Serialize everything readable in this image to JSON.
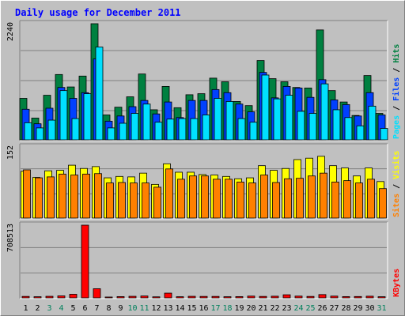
{
  "chart_title": "Daily usage for December 2011",
  "colors": {
    "title": "#0000ff",
    "hits": "#008040",
    "files": "#0040ff",
    "pages": "#00e0ff",
    "visits": "#ffff00",
    "sites": "#ff8000",
    "kbytes": "#ff0000",
    "weekend_day": "#00805c",
    "weekday": "#000000",
    "panel": "#c0c0c0"
  },
  "chart_data": [
    {
      "type": "bar",
      "panel": "hits-files-pages",
      "categories": [
        "1",
        "2",
        "3",
        "4",
        "5",
        "6",
        "7",
        "8",
        "9",
        "10",
        "11",
        "12",
        "13",
        "14",
        "15",
        "16",
        "17",
        "18",
        "19",
        "20",
        "21",
        "22",
        "23",
        "24",
        "25",
        "26",
        "27",
        "28",
        "29",
        "30",
        "31"
      ],
      "ymax_label": "2240",
      "ylim": [
        0,
        2240
      ],
      "series": [
        {
          "name": "Hits",
          "values": [
            800,
            420,
            860,
            1260,
            1020,
            1230,
            2240,
            480,
            630,
            830,
            1270,
            580,
            1030,
            620,
            870,
            890,
            1190,
            1120,
            740,
            660,
            1530,
            1180,
            1120,
            1010,
            1000,
            2120,
            950,
            730,
            470,
            1240,
            510
          ]
        },
        {
          "name": "Files",
          "values": [
            590,
            310,
            610,
            1010,
            800,
            910,
            1560,
            360,
            460,
            640,
            760,
            500,
            730,
            430,
            760,
            760,
            970,
            910,
            690,
            540,
            1300,
            810,
            1030,
            1000,
            820,
            1160,
            770,
            680,
            460,
            910,
            480
          ]
        },
        {
          "name": "Pages",
          "values": [
            330,
            230,
            380,
            950,
            410,
            890,
            1790,
            230,
            320,
            510,
            690,
            340,
            400,
            410,
            410,
            480,
            800,
            740,
            410,
            340,
            1250,
            790,
            860,
            550,
            510,
            1080,
            580,
            430,
            270,
            650,
            220
          ]
        }
      ],
      "legend": [
        "Pages",
        "Files",
        "Hits"
      ]
    },
    {
      "type": "bar",
      "panel": "visits-sites",
      "categories": [
        "1",
        "2",
        "3",
        "4",
        "5",
        "6",
        "7",
        "8",
        "9",
        "10",
        "11",
        "12",
        "13",
        "14",
        "15",
        "16",
        "17",
        "18",
        "19",
        "20",
        "21",
        "22",
        "23",
        "24",
        "25",
        "26",
        "27",
        "28",
        "29",
        "30",
        "31"
      ],
      "ymax_label": "152",
      "ylim": [
        0,
        152
      ],
      "series": [
        {
          "name": "Visits",
          "values": [
            100,
            87,
            101,
            102,
            113,
            106,
            110,
            86,
            89,
            88,
            96,
            72,
            116,
            98,
            98,
            93,
            92,
            89,
            84,
            86,
            112,
            102,
            106,
            125,
            128,
            132,
            112,
            107,
            90,
            107,
            78
          ]
        },
        {
          "name": "Sites",
          "values": [
            103,
            86,
            88,
            94,
            92,
            94,
            95,
            75,
            76,
            75,
            75,
            66,
            105,
            83,
            90,
            90,
            83,
            83,
            77,
            75,
            92,
            76,
            84,
            85,
            90,
            96,
            77,
            80,
            75,
            83,
            63
          ]
        }
      ],
      "legend": [
        "Sites",
        "Visits"
      ]
    },
    {
      "type": "bar",
      "panel": "kbytes",
      "categories": [
        "1",
        "2",
        "3",
        "4",
        "5",
        "6",
        "7",
        "8",
        "9",
        "10",
        "11",
        "12",
        "13",
        "14",
        "15",
        "16",
        "17",
        "18",
        "19",
        "20",
        "21",
        "22",
        "23",
        "24",
        "25",
        "26",
        "27",
        "28",
        "29",
        "30",
        "31"
      ],
      "ymax_label": "708513",
      "ylim": [
        0,
        708513
      ],
      "series": [
        {
          "name": "KBytes",
          "values": [
            14000,
            11000,
            15000,
            19000,
            35000,
            708513,
            89000,
            8000,
            12000,
            15000,
            18000,
            10000,
            46000,
            11000,
            15000,
            14000,
            14000,
            11000,
            12000,
            17000,
            14000,
            16000,
            30000,
            17000,
            14000,
            32000,
            17000,
            12000,
            13000,
            16000,
            11000
          ]
        }
      ],
      "legend": [
        "KBytes"
      ]
    }
  ],
  "x_axis": {
    "days": [
      "1",
      "2",
      "3",
      "4",
      "5",
      "6",
      "7",
      "8",
      "9",
      "10",
      "11",
      "12",
      "13",
      "14",
      "15",
      "16",
      "17",
      "18",
      "19",
      "20",
      "21",
      "22",
      "23",
      "24",
      "25",
      "26",
      "27",
      "28",
      "29",
      "30",
      "31"
    ],
    "weekend": [
      false,
      false,
      true,
      true,
      false,
      false,
      false,
      false,
      false,
      true,
      true,
      false,
      false,
      false,
      false,
      false,
      true,
      true,
      false,
      false,
      false,
      false,
      false,
      true,
      true,
      false,
      false,
      false,
      false,
      false,
      true
    ]
  }
}
